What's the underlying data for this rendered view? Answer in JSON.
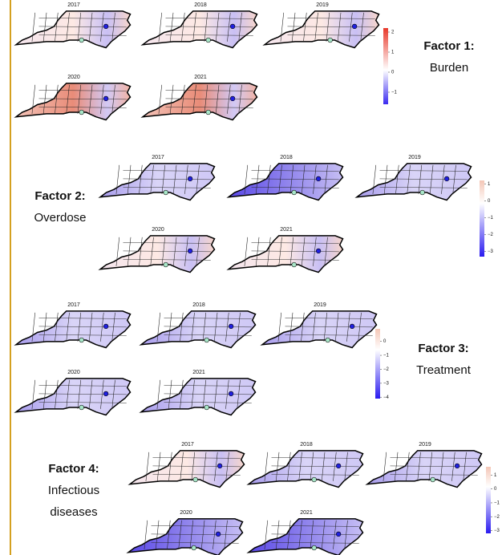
{
  "panels": [
    {
      "title": "Factor 1:",
      "subtitle": [
        "Burden"
      ],
      "years": [
        "2017",
        "2018",
        "2019",
        "2020",
        "2021"
      ],
      "colorbar": {
        "lim": [
          -1.6,
          2.2
        ],
        "ticks": [
          2,
          1,
          0,
          {
            "value": -1,
            "label": "−1"
          }
        ]
      }
    },
    {
      "title": "Factor 2:",
      "subtitle": [
        "Overdose"
      ],
      "years": [
        "2017",
        "2018",
        "2019",
        "2020",
        "2021"
      ],
      "colorbar": {
        "lim": [
          -3.3,
          1.2
        ],
        "ticks": [
          1,
          0,
          {
            "value": -1,
            "label": "−1"
          },
          {
            "value": -2,
            "label": "−2"
          },
          {
            "value": -3,
            "label": "−3"
          }
        ]
      }
    },
    {
      "title": "Factor 3:",
      "subtitle": [
        "Treatment"
      ],
      "years": [
        "2017",
        "2018",
        "2019",
        "2020",
        "2021"
      ],
      "colorbar": {
        "lim": [
          -4.1,
          0.9
        ],
        "ticks": [
          0,
          {
            "value": -1,
            "label": "−1"
          },
          {
            "value": -2,
            "label": "−2"
          },
          {
            "value": -3,
            "label": "−3"
          },
          {
            "value": -4,
            "label": "−4"
          }
        ]
      }
    },
    {
      "title": "Factor 4:",
      "subtitle": [
        "Infectious",
        "diseases"
      ],
      "years": [
        "2017",
        "2018",
        "2019",
        "2020",
        "2021"
      ],
      "colorbar": {
        "lim": [
          -3.2,
          1.6
        ],
        "ticks": [
          1,
          0,
          {
            "value": -1,
            "label": "−1"
          },
          {
            "value": -2,
            "label": "−2"
          },
          {
            "value": -3,
            "label": "−3"
          }
        ]
      }
    }
  ]
}
